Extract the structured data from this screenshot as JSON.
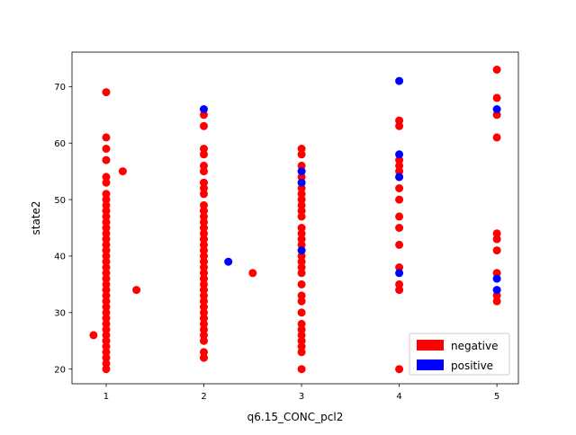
{
  "chart_data": {
    "type": "scatter",
    "title": "",
    "xlabel": "q6.15_CONC_pcl2",
    "ylabel": "state2",
    "xlim": [
      0.65,
      5.22
    ],
    "ylim": [
      17.4,
      76.1
    ],
    "xticks": [
      1,
      2,
      3,
      4,
      5
    ],
    "yticks": [
      20,
      30,
      40,
      50,
      60,
      70
    ],
    "grid": false,
    "legend": {
      "placement": "lower-right"
    },
    "series": [
      {
        "name": "negative",
        "color": "#ff0000",
        "points": [
          [
            1,
            20
          ],
          [
            1,
            21
          ],
          [
            1,
            22
          ],
          [
            1,
            23
          ],
          [
            1,
            24
          ],
          [
            1,
            25
          ],
          [
            1,
            26
          ],
          [
            1,
            27
          ],
          [
            1,
            28
          ],
          [
            1,
            29
          ],
          [
            1,
            30
          ],
          [
            1,
            31
          ],
          [
            1,
            32
          ],
          [
            1,
            33
          ],
          [
            1,
            34
          ],
          [
            1,
            35
          ],
          [
            1,
            36
          ],
          [
            1,
            37
          ],
          [
            1,
            38
          ],
          [
            1,
            39
          ],
          [
            1,
            40
          ],
          [
            1,
            41
          ],
          [
            1,
            42
          ],
          [
            1,
            43
          ],
          [
            1,
            44
          ],
          [
            1,
            45
          ],
          [
            1,
            46
          ],
          [
            1,
            47
          ],
          [
            1,
            48
          ],
          [
            1,
            49
          ],
          [
            1,
            50
          ],
          [
            1,
            51
          ],
          [
            1,
            53
          ],
          [
            1,
            54
          ],
          [
            1,
            57
          ],
          [
            1,
            59
          ],
          [
            1,
            61
          ],
          [
            1,
            69
          ],
          [
            0.87,
            26
          ],
          [
            1.17,
            55
          ],
          [
            1.31,
            34
          ],
          [
            2,
            22
          ],
          [
            2,
            23
          ],
          [
            2,
            25
          ],
          [
            2,
            26
          ],
          [
            2,
            27
          ],
          [
            2,
            28
          ],
          [
            2,
            29
          ],
          [
            2,
            30
          ],
          [
            2,
            31
          ],
          [
            2,
            32
          ],
          [
            2,
            33
          ],
          [
            2,
            34
          ],
          [
            2,
            35
          ],
          [
            2,
            36
          ],
          [
            2,
            37
          ],
          [
            2,
            38
          ],
          [
            2,
            39
          ],
          [
            2,
            40
          ],
          [
            2,
            41
          ],
          [
            2,
            42
          ],
          [
            2,
            43
          ],
          [
            2,
            44
          ],
          [
            2,
            45
          ],
          [
            2,
            46
          ],
          [
            2,
            47
          ],
          [
            2,
            48
          ],
          [
            2,
            49
          ],
          [
            2,
            51
          ],
          [
            2,
            52
          ],
          [
            2,
            53
          ],
          [
            2,
            55
          ],
          [
            2,
            56
          ],
          [
            2,
            58
          ],
          [
            2,
            59
          ],
          [
            2,
            63
          ],
          [
            2,
            65
          ],
          [
            2.5,
            37
          ],
          [
            3,
            20
          ],
          [
            3,
            23
          ],
          [
            3,
            24
          ],
          [
            3,
            25
          ],
          [
            3,
            26
          ],
          [
            3,
            27
          ],
          [
            3,
            28
          ],
          [
            3,
            30
          ],
          [
            3,
            32
          ],
          [
            3,
            33
          ],
          [
            3,
            35
          ],
          [
            3,
            37
          ],
          [
            3,
            38
          ],
          [
            3,
            39
          ],
          [
            3,
            40
          ],
          [
            3,
            42
          ],
          [
            3,
            43
          ],
          [
            3,
            44
          ],
          [
            3,
            45
          ],
          [
            3,
            47
          ],
          [
            3,
            48
          ],
          [
            3,
            49
          ],
          [
            3,
            50
          ],
          [
            3,
            51
          ],
          [
            3,
            52
          ],
          [
            3,
            54
          ],
          [
            3,
            56
          ],
          [
            3,
            58
          ],
          [
            3,
            59
          ],
          [
            4,
            20
          ],
          [
            4,
            34
          ],
          [
            4,
            35
          ],
          [
            4,
            38
          ],
          [
            4,
            42
          ],
          [
            4,
            45
          ],
          [
            4,
            47
          ],
          [
            4,
            50
          ],
          [
            4,
            52
          ],
          [
            4,
            54
          ],
          [
            4,
            55
          ],
          [
            4,
            56
          ],
          [
            4,
            57
          ],
          [
            4,
            63
          ],
          [
            4,
            64
          ],
          [
            5,
            32
          ],
          [
            5,
            33
          ],
          [
            5,
            37
          ],
          [
            5,
            41
          ],
          [
            5,
            43
          ],
          [
            5,
            44
          ],
          [
            5,
            61
          ],
          [
            5,
            65
          ],
          [
            5,
            68
          ],
          [
            5,
            73
          ]
        ]
      },
      {
        "name": "positive",
        "color": "#0000ff",
        "points": [
          [
            2,
            66
          ],
          [
            2.25,
            39
          ],
          [
            3,
            41
          ],
          [
            3,
            53
          ],
          [
            3,
            55
          ],
          [
            4,
            37
          ],
          [
            4,
            54
          ],
          [
            4,
            58
          ],
          [
            4,
            71
          ],
          [
            5,
            34
          ],
          [
            5,
            36
          ],
          [
            5,
            66
          ]
        ]
      }
    ]
  }
}
